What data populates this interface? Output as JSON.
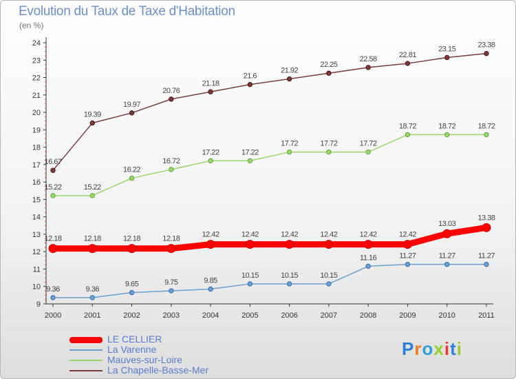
{
  "title": "Evolution du Taux de Taxe d'Habitation",
  "subtitle": "(en %)",
  "logo": {
    "letters": [
      "P",
      "r",
      "o",
      "x",
      "i",
      "t",
      "i"
    ],
    "colors": [
      "#2f7fd6",
      "#ef7a21",
      "#2f9fd6",
      "#9acd32",
      "#e23b3b",
      "#2f7fd6",
      "#9acd32"
    ]
  },
  "chart_data": {
    "type": "line",
    "x": [
      "2000",
      "2001",
      "2002",
      "2003",
      "2004",
      "2005",
      "2006",
      "2007",
      "2008",
      "2009",
      "2010",
      "2011"
    ],
    "ylim": [
      9,
      24
    ],
    "yticks": [
      "9",
      "10",
      "11",
      "12",
      "13",
      "14",
      "15",
      "16",
      "17",
      "18",
      "19",
      "20",
      "21",
      "22",
      "23",
      "24"
    ],
    "grid": false,
    "legend_position": "bottom-left",
    "series": [
      {
        "name": "LE CELLIER",
        "color": "#ff0000",
        "values": [
          12.18,
          12.18,
          12.18,
          12.18,
          12.42,
          12.42,
          12.42,
          12.42,
          12.42,
          12.42,
          13.03,
          13.38
        ],
        "labels": [
          "12.18",
          "12.18",
          "12.18",
          "12.18",
          "12.42",
          "12.42",
          "12.42",
          "12.42",
          "12.42",
          "12.42",
          "13.03",
          "13.38"
        ]
      },
      {
        "name": "La Varenne",
        "color": "#6d9fcf",
        "values": [
          9.36,
          9.36,
          9.65,
          9.75,
          9.85,
          10.15,
          10.15,
          10.15,
          11.16,
          11.27,
          11.27,
          11.27
        ],
        "labels": [
          "9.36",
          "9.36",
          "9.65",
          "9.75",
          "9.85",
          "10.15",
          "10.15",
          "10.15",
          "11.16",
          "11.27",
          "11.27",
          "11.27"
        ]
      },
      {
        "name": "Mauves-sur-Loire",
        "color": "#9bd76a",
        "values": [
          15.22,
          15.22,
          16.22,
          16.72,
          17.22,
          17.22,
          17.72,
          17.72,
          17.72,
          18.72,
          18.72,
          18.72
        ],
        "labels": [
          "15.22",
          "15.22",
          "16.22",
          "16.72",
          "17.22",
          "17.22",
          "17.72",
          "17.72",
          "17.72",
          "18.72",
          "18.72",
          "18.72"
        ]
      },
      {
        "name": "La Chapelle-Basse-Mer",
        "color": "#7a3b3b",
        "values": [
          16.67,
          19.39,
          19.97,
          20.76,
          21.18,
          21.6,
          21.92,
          22.25,
          22.58,
          22.81,
          23.15,
          23.38
        ],
        "labels": [
          "16.67",
          "19.39",
          "19.97",
          "20.76",
          "21.18",
          "21.6",
          "21.92",
          "22.25",
          "22.58",
          "22.81",
          "23.15",
          "23.38"
        ]
      }
    ]
  }
}
